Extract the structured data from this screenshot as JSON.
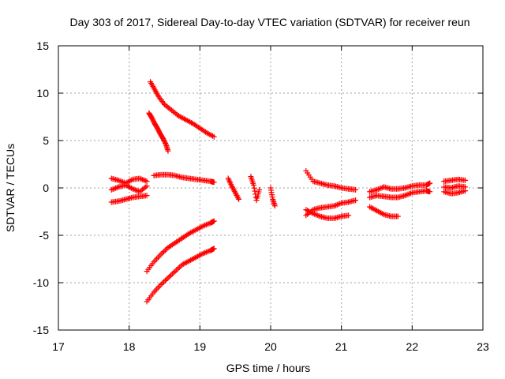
{
  "chart_data": {
    "type": "scatter",
    "title": "Day 303 of 2017, Sidereal Day-to-day VTEC variation (SDTVAR) for receiver reun",
    "xlabel": "GPS time / hours",
    "ylabel": "SDTVAR / TECUs",
    "xlim": [
      17,
      23
    ],
    "ylim": [
      -15,
      15
    ],
    "xticks": [
      17,
      18,
      19,
      20,
      21,
      22,
      23
    ],
    "yticks": [
      -15,
      -10,
      -5,
      0,
      5,
      10,
      15
    ],
    "xtick_labels": [
      "17",
      "18",
      "19",
      "20",
      "21",
      "22",
      "23"
    ],
    "ytick_labels": [
      "-15",
      "-10",
      "-5",
      "0",
      "5",
      "10",
      "15"
    ],
    "grid": true,
    "marker": "plus",
    "color": "#ff0000",
    "series": [
      {
        "x": [
          18.3,
          18.36,
          18.42,
          18.5,
          18.6,
          18.7,
          18.8,
          18.9,
          19.0,
          19.1,
          19.2
        ],
        "y": [
          11.2,
          10.4,
          9.6,
          8.8,
          8.2,
          7.6,
          7.2,
          6.8,
          6.3,
          5.8,
          5.4
        ]
      },
      {
        "x": [
          18.28,
          18.32,
          18.36,
          18.4,
          18.44,
          18.48,
          18.52,
          18.55
        ],
        "y": [
          7.9,
          7.4,
          6.8,
          6.3,
          5.7,
          5.2,
          4.6,
          3.9
        ]
      },
      {
        "x": [
          18.35,
          18.45,
          18.55,
          18.65,
          18.75,
          18.85,
          18.95,
          19.05,
          19.15,
          19.2
        ],
        "y": [
          1.3,
          1.4,
          1.4,
          1.3,
          1.1,
          1.0,
          0.9,
          0.8,
          0.7,
          0.6
        ]
      },
      {
        "x": [
          17.75,
          17.85,
          17.95,
          18.05,
          18.15,
          18.25
        ],
        "y": [
          1.0,
          0.8,
          0.5,
          0.9,
          1.0,
          0.7
        ]
      },
      {
        "x": [
          17.75,
          17.85,
          17.95,
          18.05,
          18.15,
          18.25
        ],
        "y": [
          -0.2,
          0.1,
          0.3,
          -0.1,
          -0.4,
          0.2
        ]
      },
      {
        "x": [
          17.75,
          17.85,
          17.95,
          18.05,
          18.15,
          18.25
        ],
        "y": [
          -1.5,
          -1.4,
          -1.2,
          -1.0,
          -0.9,
          -0.8
        ]
      },
      {
        "x": [
          18.25,
          18.35,
          18.45,
          18.55,
          18.65,
          18.75,
          18.85,
          18.95,
          19.05,
          19.15,
          19.2
        ],
        "y": [
          -8.8,
          -7.8,
          -7.0,
          -6.3,
          -5.8,
          -5.3,
          -4.8,
          -4.4,
          -4.0,
          -3.7,
          -3.5
        ]
      },
      {
        "x": [
          18.25,
          18.35,
          18.45,
          18.55,
          18.65,
          18.75,
          18.85,
          18.95,
          19.05,
          19.15,
          19.2
        ],
        "y": [
          -12.0,
          -11.0,
          -10.2,
          -9.5,
          -8.8,
          -8.1,
          -7.7,
          -7.3,
          -6.9,
          -6.6,
          -6.4
        ]
      },
      {
        "x": [
          19.4,
          19.45,
          19.5,
          19.55
        ],
        "y": [
          1.0,
          0.2,
          -0.5,
          -1.2
        ]
      },
      {
        "x": [
          19.72,
          19.76,
          19.8,
          19.84
        ],
        "y": [
          1.2,
          0.3,
          -1.3,
          -0.2
        ]
      },
      {
        "x": [
          20.0,
          20.03,
          20.06
        ],
        "y": [
          0.0,
          -1.2,
          -1.9
        ]
      },
      {
        "x": [
          20.5,
          20.6,
          20.7,
          20.8,
          20.9,
          21.0,
          21.1,
          21.2
        ],
        "y": [
          1.8,
          0.7,
          0.5,
          0.3,
          0.2,
          0.0,
          -0.1,
          -0.2
        ]
      },
      {
        "x": [
          20.5,
          20.6,
          20.7,
          20.8,
          20.9,
          21.0,
          21.1,
          21.2
        ],
        "y": [
          -2.9,
          -2.3,
          -2.1,
          -2.0,
          -1.9,
          -1.6,
          -1.5,
          -1.3
        ]
      },
      {
        "x": [
          20.5,
          20.6,
          20.7,
          20.8,
          20.9,
          21.0,
          21.1
        ],
        "y": [
          -2.3,
          -2.7,
          -3.0,
          -3.2,
          -3.2,
          -3.0,
          -2.9
        ]
      },
      {
        "x": [
          21.4,
          21.5,
          21.6,
          21.7,
          21.8,
          21.9,
          22.0,
          22.1,
          22.2,
          22.25
        ],
        "y": [
          -0.4,
          -0.2,
          0.1,
          -0.1,
          -0.1,
          0.0,
          0.2,
          0.3,
          0.3,
          0.5
        ]
      },
      {
        "x": [
          21.4,
          21.5,
          21.6,
          21.7,
          21.8,
          21.9,
          22.0,
          22.1,
          22.2,
          22.25
        ],
        "y": [
          -1.0,
          -0.8,
          -0.9,
          -1.0,
          -1.0,
          -0.8,
          -0.5,
          -0.4,
          -0.3,
          -0.4
        ]
      },
      {
        "x": [
          21.4,
          21.5,
          21.6,
          21.7,
          21.8
        ],
        "y": [
          -2.0,
          -2.4,
          -2.8,
          -3.0,
          -3.0
        ]
      },
      {
        "x": [
          22.45,
          22.55,
          22.65,
          22.75
        ],
        "y": [
          0.7,
          0.8,
          0.9,
          0.8
        ]
      },
      {
        "x": [
          22.45,
          22.55,
          22.65,
          22.75
        ],
        "y": [
          0.1,
          0.0,
          0.2,
          0.1
        ]
      },
      {
        "x": [
          22.45,
          22.55,
          22.65,
          22.75
        ],
        "y": [
          -0.4,
          -0.6,
          -0.5,
          -0.3
        ]
      }
    ]
  }
}
